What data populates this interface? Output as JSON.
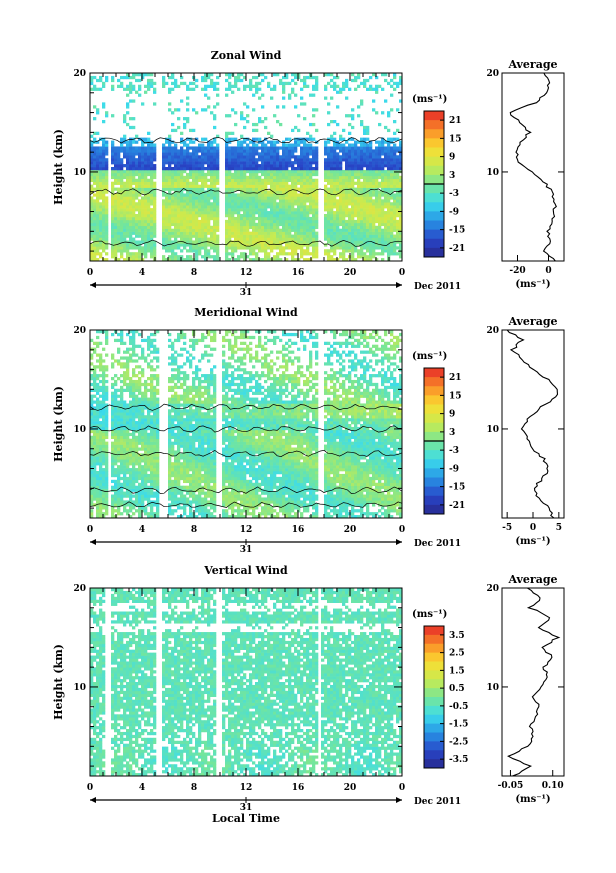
{
  "figure": {
    "date_label": "31",
    "month_label": "Dec 2011",
    "xlabel": "Local Time",
    "xticks": [
      "0",
      "4",
      "8",
      "12",
      "16",
      "20",
      "0"
    ],
    "ylabel": "Height (km)",
    "yticks": [
      "",
      "10",
      "20"
    ]
  },
  "chart_data": [
    {
      "type": "heatmap",
      "title": "Zonal Wind",
      "xlabel": "",
      "ylabel": "Height (km)",
      "xlim": [
        0,
        24
      ],
      "ylim": [
        1,
        20
      ],
      "colorbar": {
        "unit": "(ms⁻¹)",
        "ticks": [
          "21",
          "15",
          "9",
          "3",
          "-3",
          "-9",
          "-15",
          "-21"
        ],
        "range": [
          -24,
          24
        ]
      },
      "gaps_hours": [
        [
          1.3,
          1.7
        ],
        [
          5.0,
          5.6
        ],
        [
          9.9,
          10.3
        ],
        [
          17.5,
          17.9
        ]
      ],
      "profile": {
        "title": "Average",
        "xticks": [
          "-20",
          "0"
        ],
        "xlim": [
          -30,
          10
        ],
        "unit": "(ms⁻¹)",
        "heights": [
          1,
          2,
          3,
          4,
          5,
          6,
          7,
          8,
          9,
          10,
          11,
          12,
          13,
          14,
          15,
          16,
          17,
          18,
          19,
          20
        ],
        "values": [
          5,
          -2,
          1,
          0,
          2,
          4,
          4,
          2,
          -3,
          -10,
          -19,
          -21,
          -18,
          -12,
          -18,
          -25,
          -8,
          -2,
          1,
          -3
        ]
      }
    },
    {
      "type": "heatmap",
      "title": "Meridional Wind",
      "xlabel": "",
      "ylabel": "Height (km)",
      "xlim": [
        0,
        24
      ],
      "ylim": [
        1,
        20
      ],
      "colorbar": {
        "unit": "(ms⁻¹)",
        "ticks": [
          "21",
          "15",
          "9",
          "3",
          "-3",
          "-9",
          "-15",
          "-21"
        ],
        "range": [
          -24,
          24
        ]
      },
      "gaps_hours": [
        [
          1.3,
          1.7
        ],
        [
          5.3,
          5.9
        ],
        [
          9.8,
          10.2
        ],
        [
          17.5,
          17.9
        ]
      ],
      "profile": {
        "title": "Average",
        "xticks": [
          "-5",
          "0",
          "5"
        ],
        "xlim": [
          -6,
          6
        ],
        "unit": "(ms⁻¹)",
        "heights": [
          1,
          2,
          3,
          4,
          5,
          6,
          7,
          8,
          9,
          10,
          11,
          12,
          13,
          14,
          15,
          16,
          17,
          18,
          19,
          20
        ],
        "values": [
          4,
          3,
          1,
          0,
          2,
          3,
          2,
          0,
          -1,
          -2,
          -1,
          1,
          4,
          5,
          3,
          0,
          -2,
          -4,
          -2,
          -5
        ]
      }
    },
    {
      "type": "heatmap",
      "title": "Vertical Wind",
      "xlabel": "Local Time",
      "ylabel": "Height (km)",
      "xlim": [
        0,
        24
      ],
      "ylim": [
        1,
        20
      ],
      "colorbar": {
        "unit": "(ms⁻¹)",
        "ticks": [
          "3.5",
          "2.5",
          "1.5",
          "0.5",
          "-0.5",
          "-1.5",
          "-2.5",
          "-3.5"
        ],
        "range": [
          -4,
          4
        ]
      },
      "gaps_hours": [
        [
          1.2,
          1.5
        ],
        [
          5.1,
          5.6
        ],
        [
          9.8,
          10.1
        ],
        [
          17.5,
          17.8
        ]
      ],
      "profile": {
        "title": "Average",
        "xticks": [
          "-0.05",
          "0.10"
        ],
        "xlim": [
          -0.08,
          0.14
        ],
        "unit": "(ms⁻¹)",
        "heights": [
          1,
          2,
          3,
          4,
          5,
          6,
          7,
          8,
          9,
          10,
          11,
          12,
          13,
          14,
          15,
          16,
          17,
          18,
          19,
          20
        ],
        "values": [
          -0.04,
          0.02,
          -0.06,
          0.01,
          0.03,
          0.02,
          0.04,
          0.05,
          0.03,
          0.06,
          0.08,
          0.07,
          0.1,
          0.06,
          0.12,
          0.05,
          0.09,
          0.02,
          0.06,
          0.01
        ]
      }
    }
  ]
}
